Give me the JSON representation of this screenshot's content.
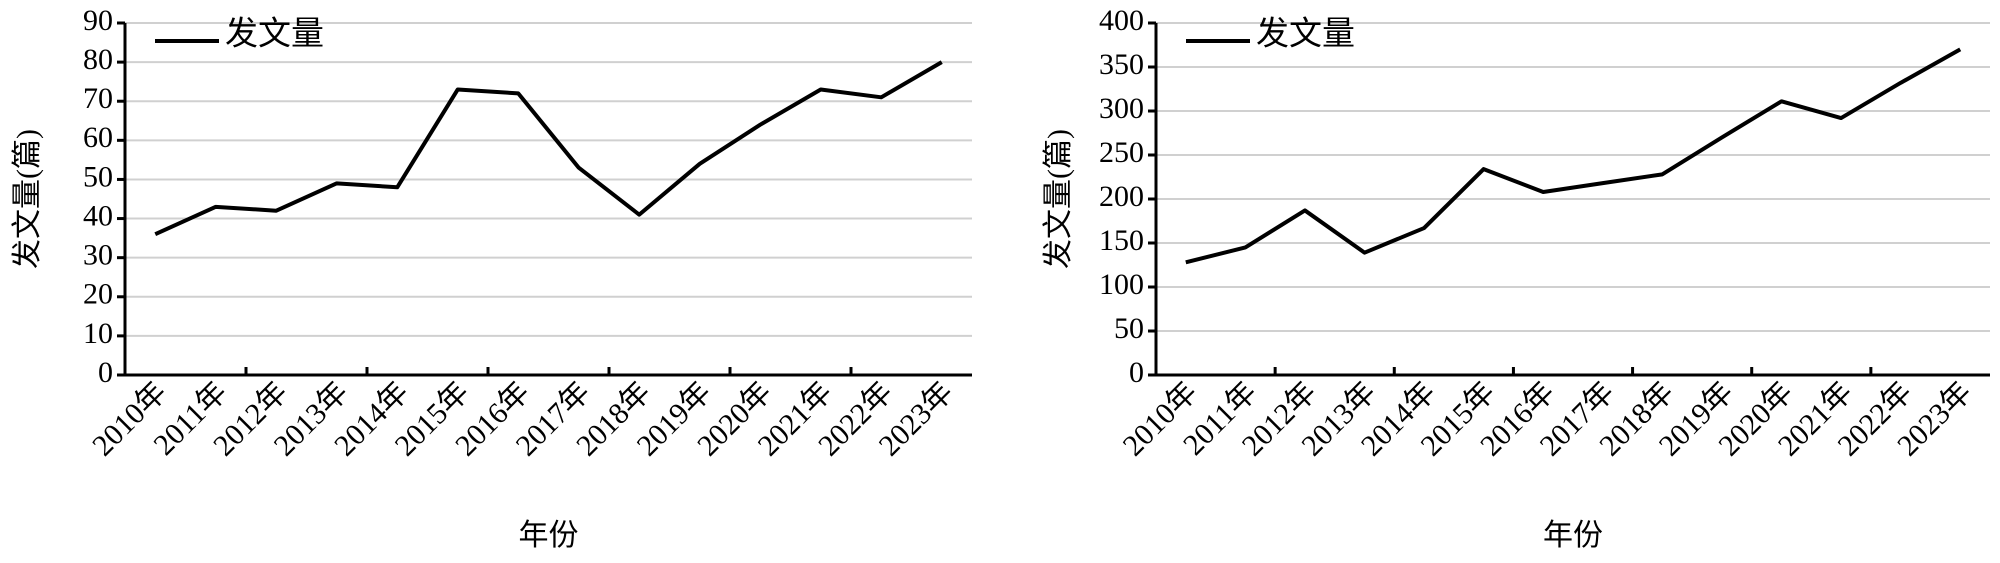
{
  "chart_data": [
    {
      "type": "line",
      "x_label": "年份",
      "y_label": "发文量(篇)",
      "categories": [
        "2010年",
        "2011年",
        "2012年",
        "2013年",
        "2014年",
        "2015年",
        "2016年",
        "2017年",
        "2018年",
        "2019年",
        "2020年",
        "2021年",
        "2022年",
        "2023年"
      ],
      "series": [
        {
          "name": "发文量",
          "color": "#000000",
          "values": [
            36,
            43,
            42,
            49,
            48,
            73,
            72,
            53,
            41,
            54,
            64,
            73,
            71,
            80
          ]
        }
      ],
      "ylim": [
        0,
        90
      ],
      "yticks": [
        0,
        10,
        20,
        30,
        40,
        50,
        60,
        70,
        80,
        90
      ],
      "grid": true,
      "legend": "upper left"
    },
    {
      "type": "line",
      "x_label": "年份",
      "y_label": "发文量(篇)",
      "categories": [
        "2010年",
        "2011年",
        "2012年",
        "2013年",
        "2014年",
        "2015年",
        "2016年",
        "2017年",
        "2018年",
        "2019年",
        "2020年",
        "2021年",
        "2022年",
        "2023年"
      ],
      "series": [
        {
          "name": "发文量",
          "color": "#000000",
          "values": [
            128,
            145,
            187,
            139,
            167,
            234,
            208,
            218,
            228,
            270,
            311,
            292,
            332,
            370
          ]
        }
      ],
      "ylim": [
        0,
        400
      ],
      "yticks": [
        0,
        50,
        100,
        150,
        200,
        250,
        300,
        350,
        400
      ],
      "grid": true,
      "legend": "upper left"
    }
  ]
}
